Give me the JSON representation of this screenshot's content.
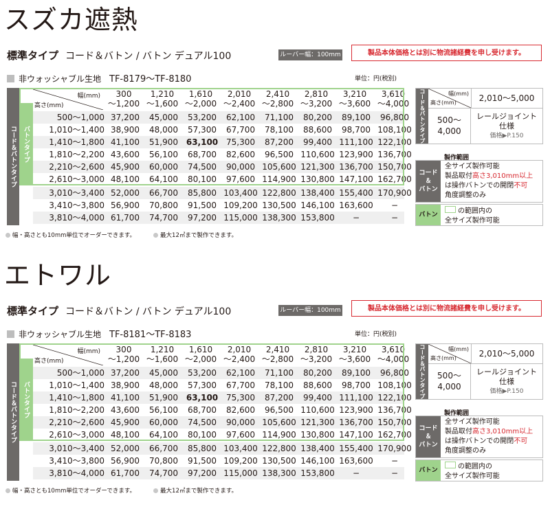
{
  "sections": [
    {
      "title": "スズカ遮熱",
      "type": "標準タイプ",
      "variant": "コード＆バトン / バトン デュアル100",
      "louver": "ルーバー幅：100mm",
      "notice": "製品本体価格とは別に物流諸経費を申し受けます。",
      "fabric": "非ウォッシャブル生地",
      "code": "TF-8179〜TF-8180",
      "unit": "単位：円(税別)"
    },
    {
      "title": "エトワル",
      "type": "標準タイプ",
      "variant": "コード＆バトン / バトン デュアル100",
      "louver": "ルーバー幅：100mm",
      "notice": "製品本体価格とは別に物流諸経費を申し受けます。",
      "fabric": "非ウォッシャブル生地",
      "code": "TF-8181〜TF-8183",
      "unit": "単位：円(税別)"
    }
  ],
  "table": {
    "outer_label": "コード＆バトンタイプ",
    "inner_label": "バトンタイプ",
    "width_header": "幅(mm)",
    "height_header": "高さ(mm)",
    "columns": [
      [
        "300",
        "〜1,200"
      ],
      [
        "1,210",
        "〜1,600"
      ],
      [
        "1,610",
        "〜2,000"
      ],
      [
        "2,010",
        "〜2,400"
      ],
      [
        "2,410",
        "〜2,800"
      ],
      [
        "2,810",
        "〜3,200"
      ],
      [
        "3,210",
        "〜3,600"
      ],
      [
        "3,610",
        "〜4,000"
      ]
    ],
    "rows": [
      {
        "label": "500〜1,000",
        "values": [
          "37,200",
          "45,000",
          "53,200",
          "62,100",
          "71,100",
          "80,200",
          "89,100",
          "96,800"
        ]
      },
      {
        "label": "1,010〜1,400",
        "values": [
          "38,900",
          "48,000",
          "57,300",
          "67,700",
          "78,100",
          "88,600",
          "98,700",
          "108,100"
        ]
      },
      {
        "label": "1,410〜1,800",
        "values": [
          "41,100",
          "51,900",
          "63,100",
          "75,300",
          "87,200",
          "99,400",
          "111,100",
          "122,100"
        ]
      },
      {
        "label": "1,810〜2,200",
        "values": [
          "43,600",
          "56,100",
          "68,700",
          "82,600",
          "96,500",
          "110,600",
          "123,900",
          "136,700"
        ]
      },
      {
        "label": "2,210〜2,600",
        "values": [
          "45,900",
          "60,000",
          "74,500",
          "90,000",
          "105,600",
          "121,300",
          "136,700",
          "150,700"
        ]
      },
      {
        "label": "2,610〜3,000",
        "values": [
          "48,100",
          "64,100",
          "80,100",
          "97,600",
          "114,900",
          "130,800",
          "147,100",
          "162,700"
        ]
      },
      {
        "label": "3,010〜3,400",
        "values": [
          "52,000",
          "66,700",
          "85,800",
          "103,400",
          "122,800",
          "138,400",
          "155,400",
          "170,900"
        ]
      },
      {
        "label": "3,410〜3,800",
        "values": [
          "56,900",
          "70,800",
          "91,500",
          "109,200",
          "130,500",
          "146,100",
          "163,600",
          "−"
        ]
      },
      {
        "label": "3,810〜4,000",
        "values": [
          "61,700",
          "74,700",
          "97,200",
          "115,000",
          "138,300",
          "153,800",
          "−",
          "−"
        ]
      }
    ],
    "bold_cell": "63,100"
  },
  "footnote": {
    "a": "幅・高さとも10mm単位でオーダーできます。",
    "b": "最大12㎡まで製作できます。"
  },
  "rail": {
    "label": "コード＆バトンタイプ",
    "width_header": "幅(mm)",
    "height_header": "高さ(mm)",
    "width_range": "2,010〜5,000",
    "height_range_a": "500〜",
    "height_range_b": "4,000",
    "line1": "レールジョイント",
    "line2": "仕様",
    "price": "価格▶P.150"
  },
  "scope": {
    "title": "製作範囲",
    "cord_label_a": "コード",
    "cord_label_b": "＆",
    "cord_label_c": "バトン",
    "l1": "全サイズ製作可能",
    "l2a": "製品取付",
    "l2b": "高さ3,010mm以上",
    "l3a": "は操作バトンでの開閉",
    "l3b": "不可",
    "l4": "角度調整のみ",
    "baton_label": "バトン",
    "b1": "の範囲内の",
    "b2": "全サイズ製作可能"
  }
}
